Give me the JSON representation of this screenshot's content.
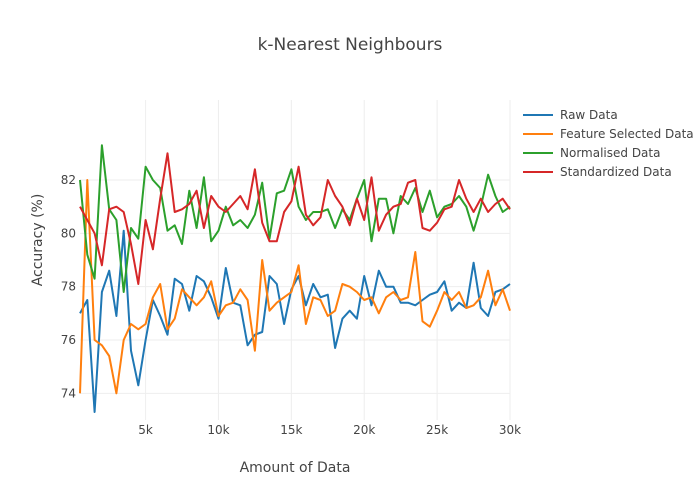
{
  "chart_data": {
    "type": "line",
    "title": "k-Nearest Neighbours",
    "xlabel": "Amount of Data",
    "ylabel": "Accuracy (%)",
    "xlim": [
      500,
      30000
    ],
    "ylim": [
      73,
      85
    ],
    "xticks": [
      5000,
      10000,
      15000,
      20000,
      25000,
      30000
    ],
    "xtick_labels": [
      "5k",
      "10k",
      "15k",
      "20k",
      "25k",
      "30k"
    ],
    "yticks": [
      74,
      76,
      78,
      80,
      82
    ],
    "ytick_labels": [
      "74",
      "76",
      "78",
      "80",
      "82"
    ],
    "grid": true,
    "legend_position": "top-right",
    "x": [
      500,
      1000,
      1500,
      2000,
      2500,
      3000,
      3500,
      4000,
      4500,
      5000,
      5500,
      6000,
      6500,
      7000,
      7500,
      8000,
      8500,
      9000,
      9500,
      10000,
      10500,
      11000,
      11500,
      12000,
      12500,
      13000,
      13500,
      14000,
      14500,
      15000,
      15500,
      16000,
      16500,
      17000,
      17500,
      18000,
      18500,
      19000,
      19500,
      20000,
      20500,
      21000,
      21500,
      22000,
      22500,
      23000,
      23500,
      24000,
      24500,
      25000,
      25500,
      26000,
      26500,
      27000,
      27500,
      28000,
      28500,
      29000,
      29500,
      30000
    ],
    "series": [
      {
        "name": "Raw Data",
        "color": "#1f77b4",
        "values": [
          77.0,
          77.5,
          73.3,
          77.8,
          78.6,
          76.9,
          80.1,
          75.6,
          74.3,
          76.0,
          77.5,
          76.9,
          76.2,
          78.3,
          78.1,
          77.1,
          78.4,
          78.2,
          77.6,
          76.8,
          78.7,
          77.4,
          77.3,
          75.8,
          76.2,
          76.3,
          78.4,
          78.1,
          76.6,
          77.9,
          78.4,
          77.3,
          78.1,
          77.6,
          77.7,
          75.7,
          76.8,
          77.1,
          76.8,
          78.4,
          77.3,
          78.6,
          78.0,
          78.0,
          77.4,
          77.4,
          77.3,
          77.5,
          77.7,
          77.8,
          78.2,
          77.1,
          77.4,
          77.2,
          78.9,
          77.2,
          76.9,
          77.8,
          77.9,
          78.1
        ]
      },
      {
        "name": "Feature Selected Data",
        "color": "#ff7f0e",
        "values": [
          74.0,
          82.0,
          76.0,
          75.8,
          75.4,
          74.0,
          76.0,
          76.6,
          76.4,
          76.6,
          77.6,
          78.1,
          76.4,
          76.8,
          77.9,
          77.6,
          77.3,
          77.6,
          78.2,
          76.9,
          77.3,
          77.4,
          77.9,
          77.5,
          75.6,
          79.0,
          77.1,
          77.4,
          77.6,
          77.8,
          78.8,
          76.6,
          77.6,
          77.5,
          76.9,
          77.1,
          78.1,
          78.0,
          77.8,
          77.5,
          77.6,
          77.0,
          77.6,
          77.8,
          77.5,
          77.6,
          79.3,
          76.7,
          76.5,
          77.1,
          77.8,
          77.5,
          77.8,
          77.2,
          77.3,
          77.6,
          78.6,
          77.3,
          77.9,
          77.1
        ]
      },
      {
        "name": "Normalised Data",
        "color": "#2ca02c",
        "values": [
          82.0,
          79.2,
          78.3,
          83.3,
          80.9,
          80.5,
          77.8,
          80.2,
          79.8,
          82.5,
          82.0,
          81.7,
          80.1,
          80.3,
          79.6,
          81.6,
          80.2,
          82.1,
          79.7,
          80.1,
          81.0,
          80.3,
          80.5,
          80.2,
          80.7,
          81.9,
          79.8,
          81.5,
          81.6,
          82.4,
          81.0,
          80.5,
          80.8,
          80.8,
          80.9,
          80.2,
          80.9,
          80.5,
          81.3,
          82.0,
          79.7,
          81.3,
          81.3,
          80.0,
          81.4,
          81.1,
          81.7,
          80.8,
          81.6,
          80.6,
          81.0,
          81.1,
          81.4,
          81.0,
          80.1,
          81.0,
          82.2,
          81.4,
          80.8,
          81.0
        ]
      },
      {
        "name": "Standardized Data",
        "color": "#d62728",
        "values": [
          81.0,
          80.5,
          80.0,
          78.8,
          80.9,
          81.0,
          80.8,
          79.6,
          78.1,
          80.5,
          79.4,
          81.3,
          83.0,
          80.8,
          80.9,
          81.1,
          81.6,
          80.2,
          81.4,
          81.0,
          80.8,
          81.1,
          81.4,
          80.9,
          82.4,
          80.4,
          79.7,
          79.7,
          80.8,
          81.2,
          82.5,
          80.7,
          80.3,
          80.6,
          82.0,
          81.4,
          81.0,
          80.3,
          81.3,
          80.5,
          82.1,
          80.1,
          80.7,
          81.0,
          81.1,
          81.9,
          82.0,
          80.2,
          80.1,
          80.4,
          80.9,
          81.0,
          82.0,
          81.3,
          80.8,
          81.3,
          80.8,
          81.1,
          81.3,
          80.9
        ]
      }
    ]
  }
}
